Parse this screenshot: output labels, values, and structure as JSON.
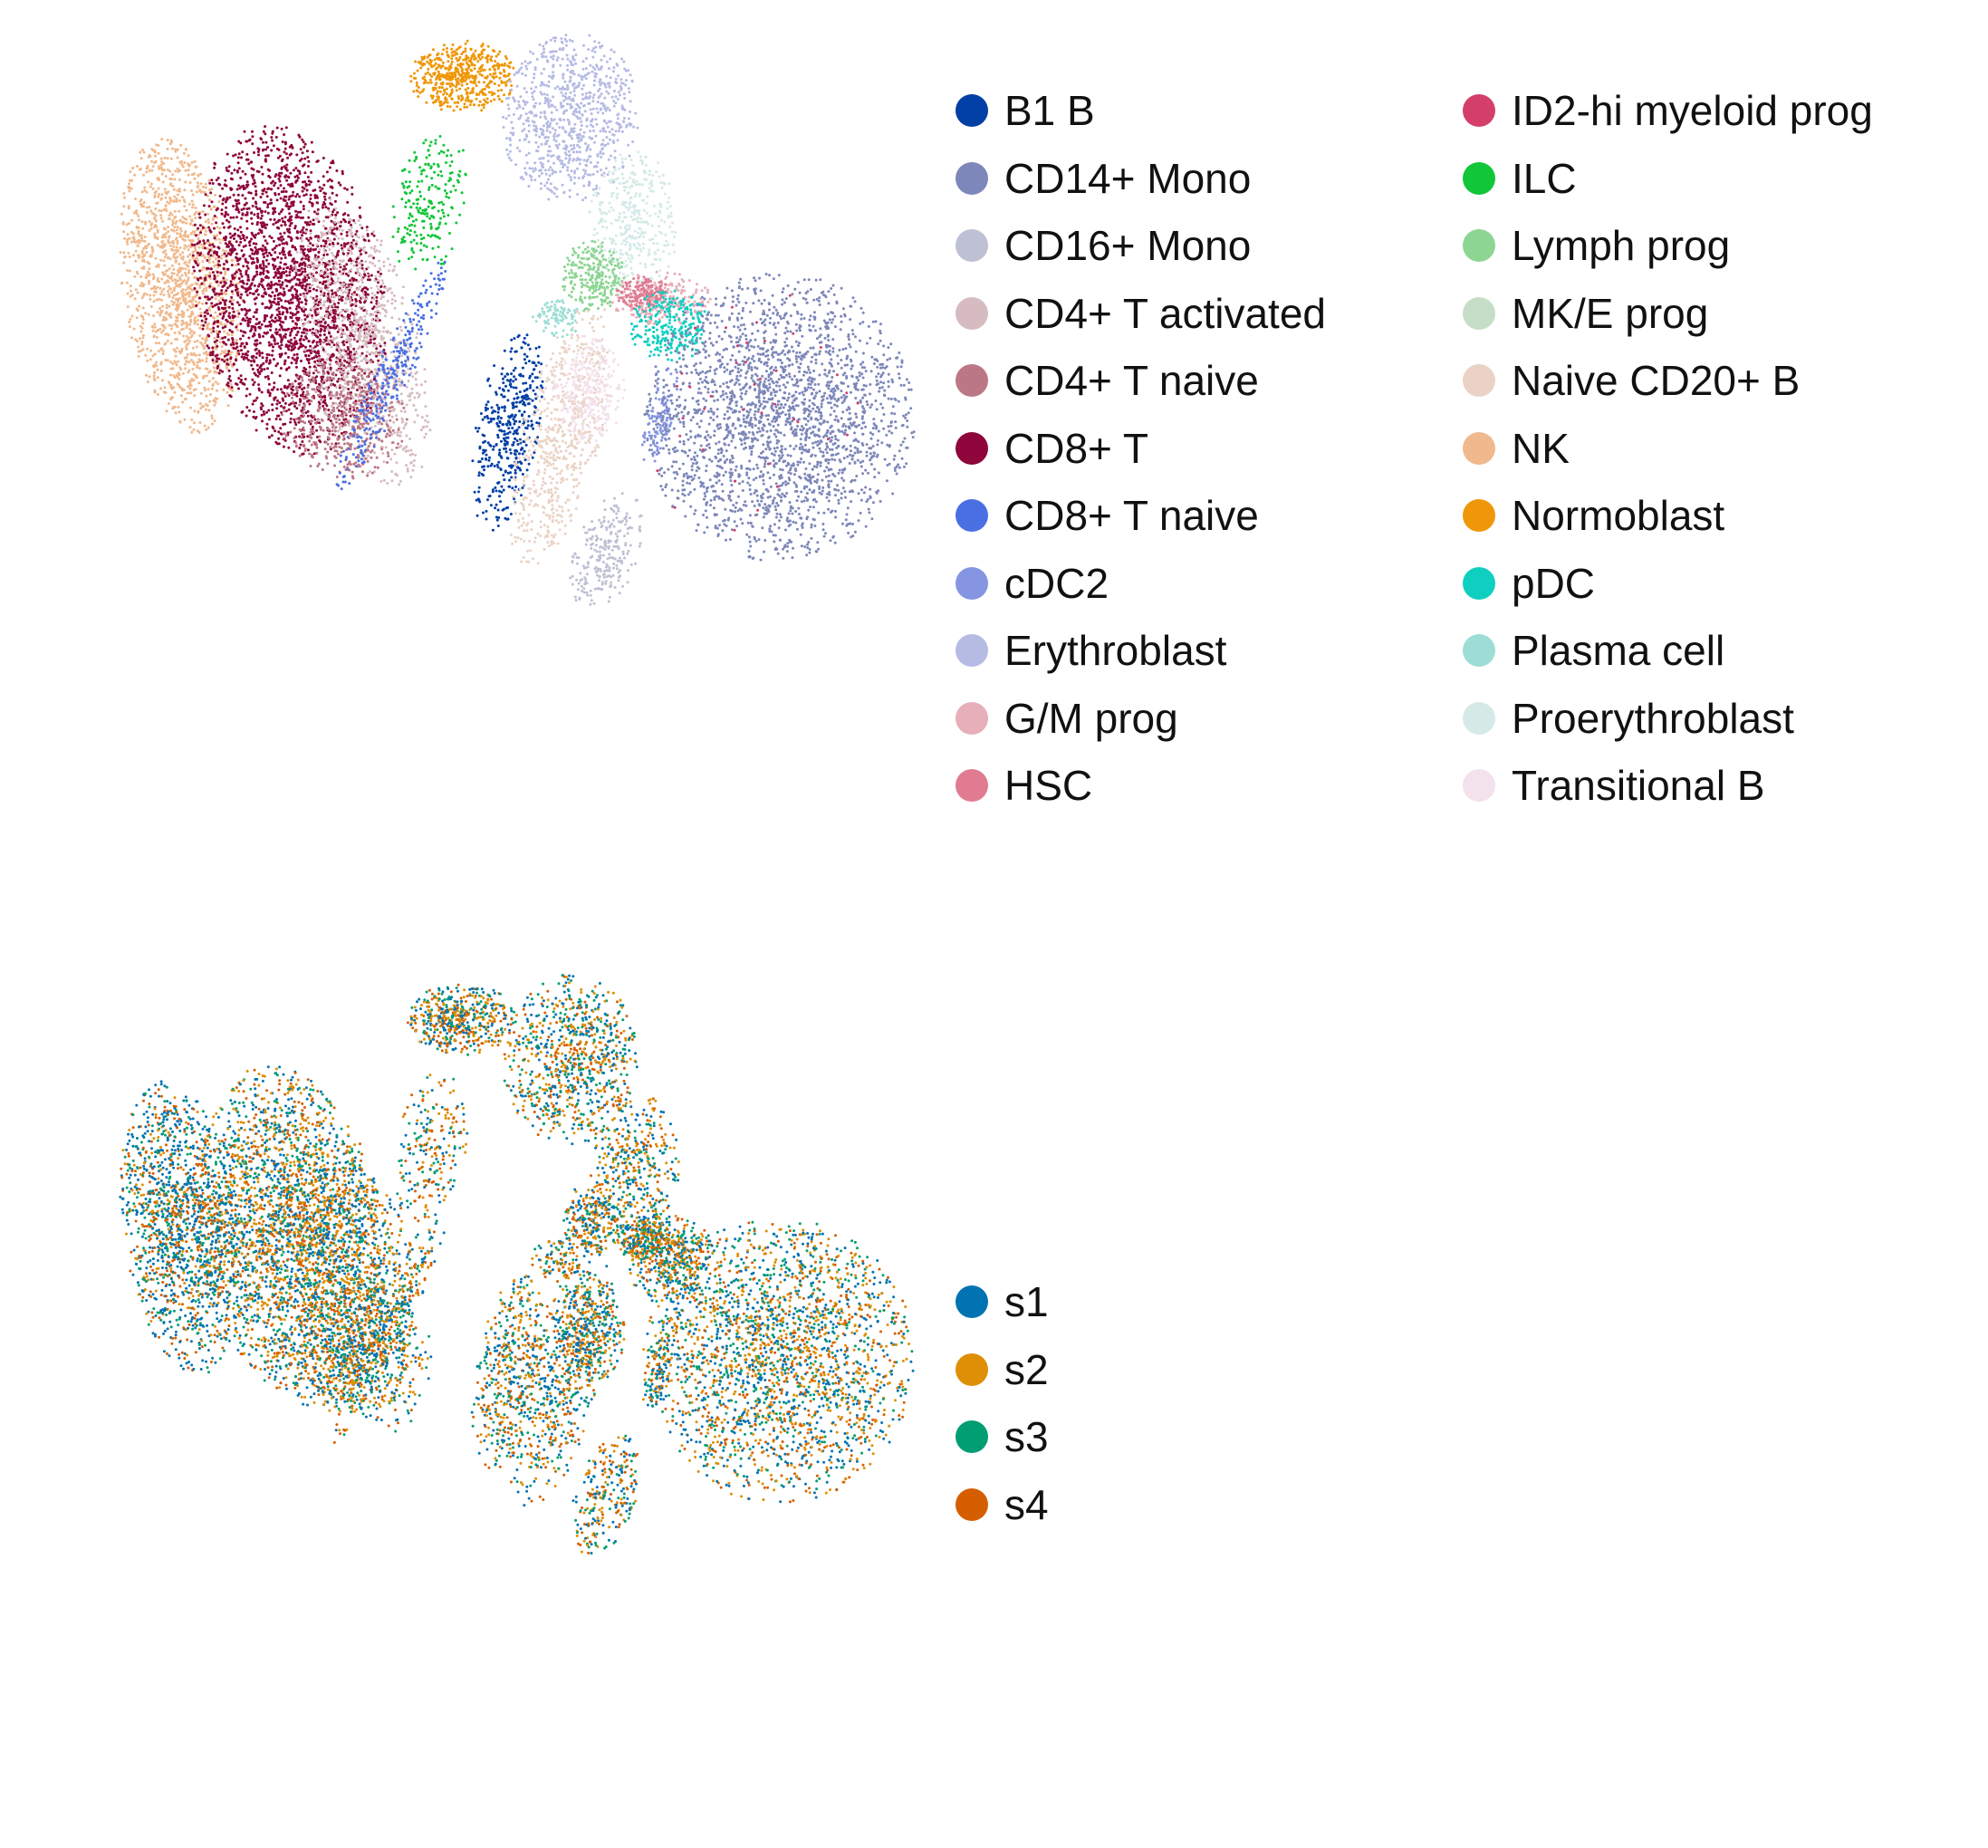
{
  "chart_data": [
    {
      "type": "scatter",
      "title": "",
      "xlabel": "",
      "ylabel": "",
      "grid": false,
      "axes_visible": false,
      "legend_placement": "right",
      "legend": {
        "columns": 2,
        "entries": [
          {
            "label": "B1 B",
            "color": "#023fa5"
          },
          {
            "label": "CD14+ Mono",
            "color": "#7d87b9"
          },
          {
            "label": "CD16+ Mono",
            "color": "#bec1d4"
          },
          {
            "label": "CD4+ T activated",
            "color": "#d6bcc0"
          },
          {
            "label": "CD4+ T naive",
            "color": "#bb7784"
          },
          {
            "label": "CD8+ T",
            "color": "#8e063b"
          },
          {
            "label": "CD8+ T naive",
            "color": "#4a6fe3"
          },
          {
            "label": "cDC2",
            "color": "#8595e1"
          },
          {
            "label": "Erythroblast",
            "color": "#b5bbe3"
          },
          {
            "label": "G/M prog",
            "color": "#e6afb9"
          },
          {
            "label": "HSC",
            "color": "#e07b91"
          },
          {
            "label": "ID2-hi myeloid prog",
            "color": "#d33f6a"
          },
          {
            "label": "ILC",
            "color": "#11c638"
          },
          {
            "label": "Lymph prog",
            "color": "#8dd593"
          },
          {
            "label": "MK/E prog",
            "color": "#c6dec7"
          },
          {
            "label": "Naive CD20+ B",
            "color": "#ead3c6"
          },
          {
            "label": "NK",
            "color": "#f0b98d"
          },
          {
            "label": "Normoblast",
            "color": "#ef9708"
          },
          {
            "label": "pDC",
            "color": "#0fcfc0"
          },
          {
            "label": "Plasma cell",
            "color": "#9cded6"
          },
          {
            "label": "Proerythroblast",
            "color": "#d5eae7"
          },
          {
            "label": "Transitional B",
            "color": "#f3e1eb"
          }
        ]
      }
    },
    {
      "type": "scatter",
      "title": "",
      "xlabel": "",
      "ylabel": "",
      "grid": false,
      "axes_visible": false,
      "legend_placement": "right",
      "legend": {
        "columns": 1,
        "entries": [
          {
            "label": "s1",
            "color": "#0173b2"
          },
          {
            "label": "s2",
            "color": "#de8f05"
          },
          {
            "label": "s3",
            "color": "#029e73"
          },
          {
            "label": "s4",
            "color": "#d55e00"
          }
        ]
      }
    }
  ]
}
